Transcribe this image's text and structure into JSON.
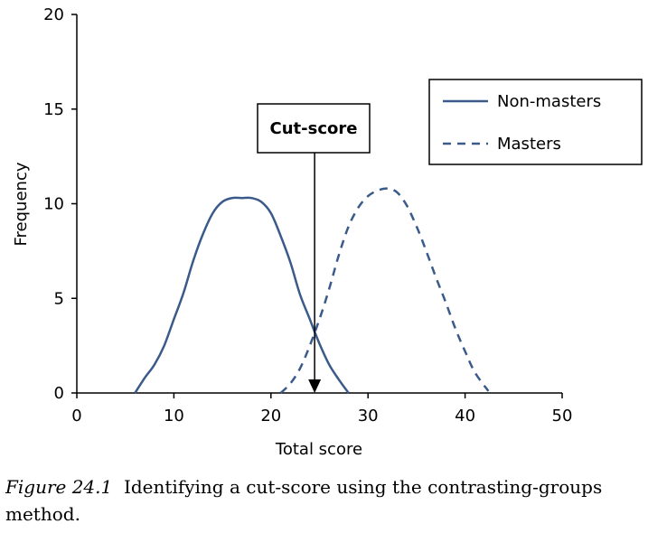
{
  "chart_data": {
    "type": "line",
    "xlabel": "Total score",
    "ylabel": "Frequency",
    "xlim": [
      0,
      50
    ],
    "ylim": [
      0,
      20
    ],
    "xticks": [
      0,
      10,
      20,
      30,
      40,
      50
    ],
    "yticks": [
      0,
      5,
      10,
      15,
      20
    ],
    "grid": false,
    "legend_position": "top-right",
    "series": [
      {
        "name": "Non-masters",
        "line_style": "solid",
        "color": "#3a5a8a",
        "points": [
          [
            6,
            0
          ],
          [
            7,
            0.8
          ],
          [
            8,
            1.5
          ],
          [
            9,
            2.5
          ],
          [
            10,
            3.9
          ],
          [
            11,
            5.3
          ],
          [
            12,
            7.0
          ],
          [
            13,
            8.4
          ],
          [
            14,
            9.5
          ],
          [
            15,
            10.1
          ],
          [
            16,
            10.3
          ],
          [
            17,
            10.3
          ],
          [
            18,
            10.3
          ],
          [
            19,
            10.1
          ],
          [
            20,
            9.5
          ],
          [
            21,
            8.3
          ],
          [
            22,
            6.9
          ],
          [
            23,
            5.2
          ],
          [
            24,
            3.9
          ],
          [
            25,
            2.6
          ],
          [
            26,
            1.5
          ],
          [
            27,
            0.7
          ],
          [
            28,
            0
          ]
        ]
      },
      {
        "name": "Masters",
        "line_style": "dashed",
        "color": "#3a5a8a",
        "points": [
          [
            21,
            0
          ],
          [
            22,
            0.5
          ],
          [
            23,
            1.3
          ],
          [
            24,
            2.5
          ],
          [
            25,
            3.9
          ],
          [
            26,
            5.5
          ],
          [
            27,
            7.3
          ],
          [
            28,
            8.8
          ],
          [
            29,
            9.8
          ],
          [
            30,
            10.4
          ],
          [
            31,
            10.7
          ],
          [
            32,
            10.8
          ],
          [
            33,
            10.6
          ],
          [
            34,
            9.9
          ],
          [
            35,
            8.8
          ],
          [
            36,
            7.5
          ],
          [
            37,
            6.1
          ],
          [
            38,
            4.8
          ],
          [
            39,
            3.4
          ],
          [
            40,
            2.2
          ],
          [
            41,
            1.1
          ],
          [
            42.4,
            0.1
          ]
        ]
      }
    ],
    "annotation": {
      "text": "Cut-score",
      "x": 24.5
    }
  },
  "caption": {
    "label": "Figure 24.1",
    "text": "Identifying a cut-score using the contrasting-groups method."
  },
  "colors": {
    "series": "#3a5a8a",
    "axis": "#000000"
  }
}
